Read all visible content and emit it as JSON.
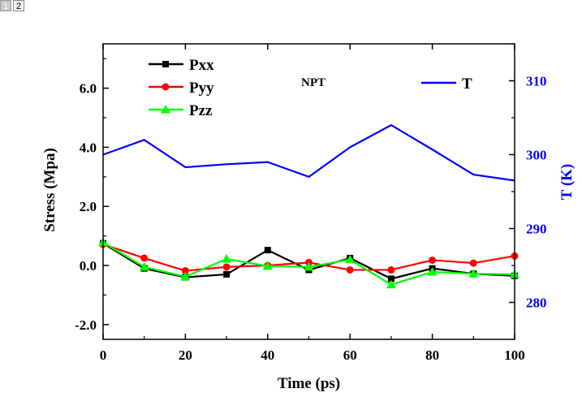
{
  "viewer": {
    "pages": [
      {
        "label": "1",
        "active": true
      },
      {
        "label": "2",
        "active": false
      }
    ]
  },
  "chart_data": {
    "type": "line",
    "title": "",
    "annotation": "NPT",
    "xlabel": "Time (ps)",
    "ylabel": "Stress (Mpa)",
    "y2label": "T (K)",
    "xlim": [
      0,
      100
    ],
    "ylim": [
      -2.5,
      7.5
    ],
    "y2lim": [
      275,
      315
    ],
    "x": [
      0,
      10,
      20,
      30,
      40,
      50,
      60,
      70,
      80,
      90,
      100
    ],
    "xticks": [
      "0",
      "20",
      "40",
      "60",
      "80",
      "100"
    ],
    "yticks": [
      "-2.0",
      "0.0",
      "2.0",
      "4.0",
      "6.0"
    ],
    "y2ticks": [
      "280",
      "290",
      "300",
      "310"
    ],
    "legend_left": "top-left",
    "legend_right": "top-right",
    "series": [
      {
        "name": "Pxx",
        "axis": "left",
        "color": "#000000",
        "marker": "square",
        "values": [
          0.75,
          -0.1,
          -0.4,
          -0.3,
          0.52,
          -0.15,
          0.25,
          -0.45,
          -0.1,
          -0.28,
          -0.35
        ]
      },
      {
        "name": "Pyy",
        "axis": "left",
        "color": "#ff0000",
        "marker": "circle",
        "values": [
          0.72,
          0.25,
          -0.18,
          -0.05,
          0.0,
          0.1,
          -0.15,
          -0.15,
          0.18,
          0.08,
          0.32
        ]
      },
      {
        "name": "Pzz",
        "axis": "left",
        "color": "#00ff00",
        "marker": "triangle",
        "values": [
          0.78,
          -0.05,
          -0.38,
          0.22,
          -0.02,
          -0.05,
          0.2,
          -0.65,
          -0.22,
          -0.28,
          -0.3
        ]
      },
      {
        "name": "T",
        "axis": "right",
        "color": "#0000ff",
        "marker": "none",
        "values": [
          300.0,
          302.0,
          298.3,
          298.7,
          299.0,
          297.0,
          301.0,
          304.0,
          300.7,
          297.3,
          296.5
        ]
      }
    ]
  }
}
